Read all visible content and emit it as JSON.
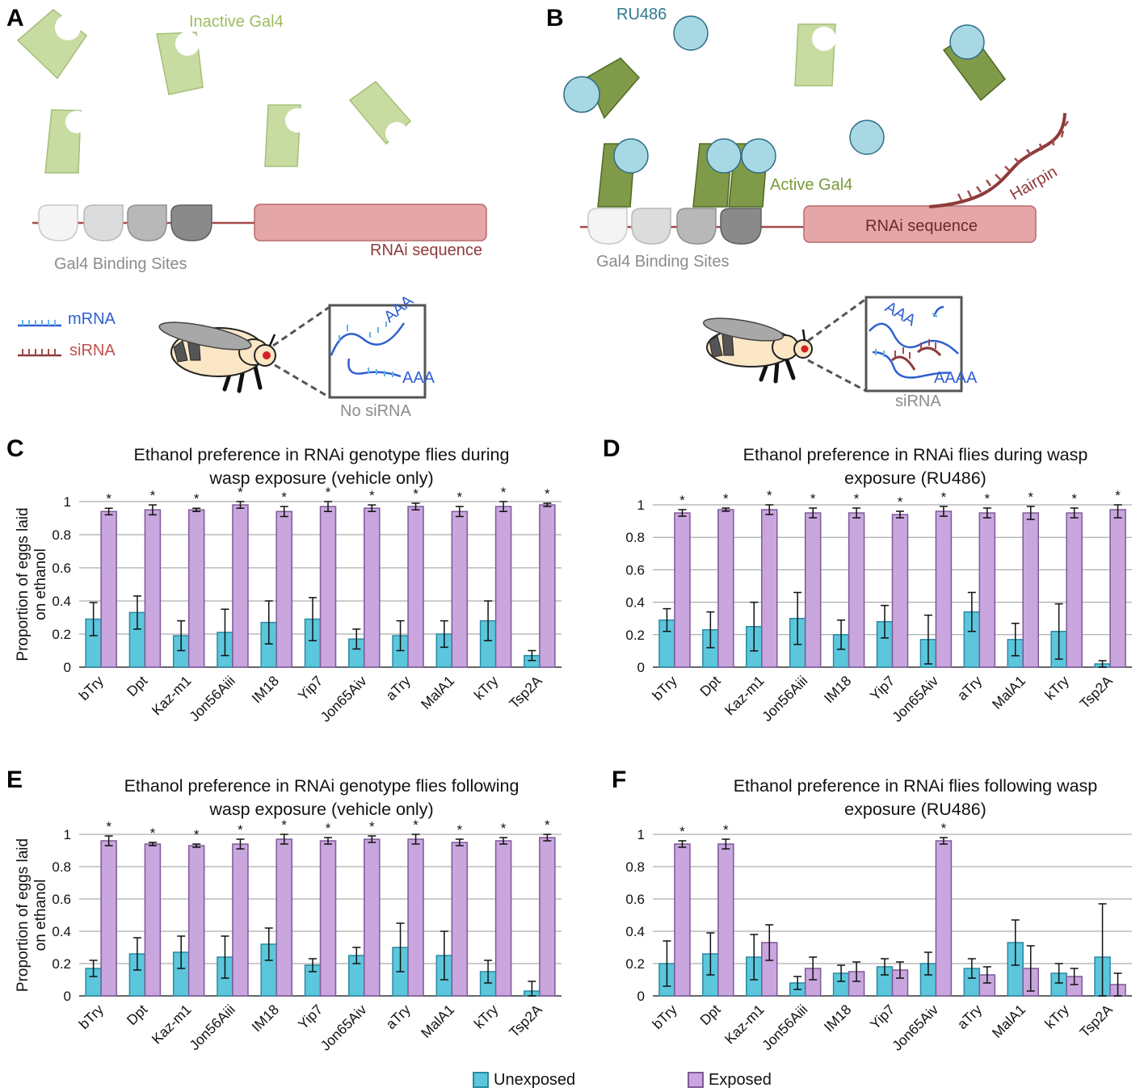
{
  "colors": {
    "unexposed": "#5bc6dc",
    "unexposed_border": "#2b8aa0",
    "exposed": "#c9a6de",
    "exposed_border": "#7e5a98",
    "inactive_gal4": "#c8dca2",
    "active_gal4": "#7f9a48",
    "ru486": "#a8d8e4",
    "rnai_box": "#e4a6a6",
    "dark_red": "#8e3a3a",
    "mrna_blue": "#2f5fd0"
  },
  "diagram": {
    "panel_a": {
      "letter": "A",
      "inactive_gal4_label": "Inactive Gal4",
      "binding_sites_label": "Gal4 Binding Sites",
      "rnai_label": "RNAi sequence",
      "mrna_legend": "mRNA",
      "sirna_legend": "siRNA",
      "poly_a_1": "AAA",
      "poly_a_2": "AAA",
      "inset_caption": "No siRNA"
    },
    "panel_b": {
      "letter": "B",
      "ru486_label": "RU486",
      "active_gal4_label": "Active Gal4",
      "hairpin_label": "Hairpin",
      "binding_sites_label": "Gal4 Binding Sites",
      "rnai_box_label": "RNAi sequence",
      "poly_a_1": "AAA",
      "poly_a_2": "AAAA",
      "inset_caption": "siRNA"
    }
  },
  "legend": {
    "unexposed": "Unexposed",
    "exposed": "Exposed"
  },
  "chart_data": [
    {
      "panel": "C",
      "type": "bar",
      "title": [
        "Ethanol preference in RNAi genotype flies during",
        "wasp exposure (vehicle only)"
      ],
      "ylabel": [
        "Proportion of eggs laid",
        "on ethanol"
      ],
      "ylim": [
        0,
        1
      ],
      "yticks": [
        "0",
        "0.2",
        "0.4",
        "0.6",
        "0.8",
        "1"
      ],
      "grid": true,
      "categories": [
        "bTry",
        "Dpt",
        "Kaz-m1",
        "Jon56Aiii",
        "IM18",
        "Yip7",
        "Jon65Aiv",
        "aTry",
        "MalA1",
        "kTry",
        "Tsp2A"
      ],
      "series": [
        {
          "name": "Unexposed",
          "values": [
            0.29,
            0.33,
            0.19,
            0.21,
            0.27,
            0.29,
            0.17,
            0.19,
            0.2,
            0.28,
            0.07
          ],
          "errors": [
            0.1,
            0.1,
            0.09,
            0.14,
            0.13,
            0.13,
            0.06,
            0.09,
            0.08,
            0.12,
            0.03
          ]
        },
        {
          "name": "Exposed",
          "values": [
            0.94,
            0.95,
            0.95,
            0.98,
            0.94,
            0.97,
            0.96,
            0.97,
            0.94,
            0.97,
            0.98
          ],
          "errors": [
            0.02,
            0.03,
            0.01,
            0.02,
            0.03,
            0.03,
            0.02,
            0.02,
            0.03,
            0.03,
            0.01
          ]
        }
      ],
      "significance": [
        "*",
        "*",
        "*",
        "*",
        "*",
        "*",
        "*",
        "*",
        "*",
        "*",
        "*"
      ]
    },
    {
      "panel": "D",
      "type": "bar",
      "title": [
        "Ethanol preference in RNAi flies during wasp",
        "exposure (RU486)"
      ],
      "ylabel": [],
      "ylim": [
        0,
        1
      ],
      "yticks": [
        "0",
        "0.2",
        "0.4",
        "0.6",
        "0.8",
        "1"
      ],
      "grid": true,
      "categories": [
        "bTry",
        "Dpt",
        "Kaz-m1",
        "Jon56Aiii",
        "IM18",
        "Yip7",
        "Jon65Aiv",
        "aTry",
        "MalA1",
        "kTry",
        "Tsp2A"
      ],
      "series": [
        {
          "name": "Unexposed",
          "values": [
            0.29,
            0.23,
            0.25,
            0.3,
            0.2,
            0.28,
            0.17,
            0.34,
            0.17,
            0.22,
            0.02
          ],
          "errors": [
            0.07,
            0.11,
            0.15,
            0.16,
            0.09,
            0.1,
            0.15,
            0.12,
            0.1,
            0.17,
            0.02
          ]
        },
        {
          "name": "Exposed",
          "values": [
            0.95,
            0.97,
            0.97,
            0.95,
            0.95,
            0.94,
            0.96,
            0.95,
            0.95,
            0.95,
            0.97
          ],
          "errors": [
            0.02,
            0.01,
            0.03,
            0.03,
            0.03,
            0.02,
            0.03,
            0.03,
            0.04,
            0.03,
            0.05
          ]
        }
      ],
      "significance": [
        "*",
        "*",
        "*",
        "*",
        "*",
        "*",
        "*",
        "*",
        "*",
        "*",
        "*"
      ]
    },
    {
      "panel": "E",
      "type": "bar",
      "title": [
        "Ethanol preference in RNAi genotype flies following",
        "wasp exposure (vehicle only)"
      ],
      "ylabel": [
        "Proportion of eggs laid",
        "on ethanol"
      ],
      "ylim": [
        0,
        1
      ],
      "yticks": [
        "0",
        "0.2",
        "0.4",
        "0.6",
        "0.8",
        "1"
      ],
      "grid": true,
      "categories": [
        "bTry",
        "Dpt",
        "Kaz-m1",
        "Jon56Aiii",
        "IM18",
        "Yip7",
        "Jon65Aiv",
        "aTry",
        "MalA1",
        "kTry",
        "Tsp2A"
      ],
      "series": [
        {
          "name": "Unexposed",
          "values": [
            0.17,
            0.26,
            0.27,
            0.24,
            0.32,
            0.19,
            0.25,
            0.3,
            0.25,
            0.15,
            0.03
          ],
          "errors": [
            0.05,
            0.1,
            0.1,
            0.13,
            0.1,
            0.04,
            0.05,
            0.15,
            0.15,
            0.07,
            0.06
          ]
        },
        {
          "name": "Exposed",
          "values": [
            0.96,
            0.94,
            0.93,
            0.94,
            0.97,
            0.96,
            0.97,
            0.97,
            0.95,
            0.96,
            0.98
          ],
          "errors": [
            0.03,
            0.01,
            0.01,
            0.03,
            0.03,
            0.02,
            0.02,
            0.03,
            0.02,
            0.02,
            0.02
          ]
        }
      ],
      "significance": [
        "*",
        "*",
        "*",
        "*",
        "*",
        "*",
        "*",
        "*",
        "*",
        "*",
        "*"
      ]
    },
    {
      "panel": "F",
      "type": "bar",
      "title": [
        "Ethanol preference in RNAi flies following wasp",
        "exposure (RU486)"
      ],
      "ylabel": [],
      "ylim": [
        0,
        1
      ],
      "yticks": [
        "0",
        "0.2",
        "0.4",
        "0.6",
        "0.8",
        "1"
      ],
      "grid": true,
      "categories": [
        "bTry",
        "Dpt",
        "Kaz-m1",
        "Jon56Aiii",
        "IM18",
        "Yip7",
        "Jon65Aiv",
        "aTry",
        "MalA1",
        "kTry",
        "Tsp2A"
      ],
      "series": [
        {
          "name": "Unexposed",
          "values": [
            0.2,
            0.26,
            0.24,
            0.08,
            0.14,
            0.18,
            0.2,
            0.17,
            0.33,
            0.14,
            0.24
          ],
          "errors": [
            0.14,
            0.13,
            0.14,
            0.04,
            0.05,
            0.05,
            0.07,
            0.06,
            0.14,
            0.06,
            0.33
          ]
        },
        {
          "name": "Exposed",
          "values": [
            0.94,
            0.94,
            0.33,
            0.17,
            0.15,
            0.16,
            0.96,
            0.13,
            0.17,
            0.12,
            0.07
          ],
          "errors": [
            0.02,
            0.03,
            0.11,
            0.07,
            0.06,
            0.05,
            0.02,
            0.05,
            0.14,
            0.05,
            0.07
          ]
        }
      ],
      "significance": [
        "*",
        "*",
        "",
        "",
        "",
        "",
        "*",
        "",
        "",
        "",
        ""
      ]
    }
  ]
}
